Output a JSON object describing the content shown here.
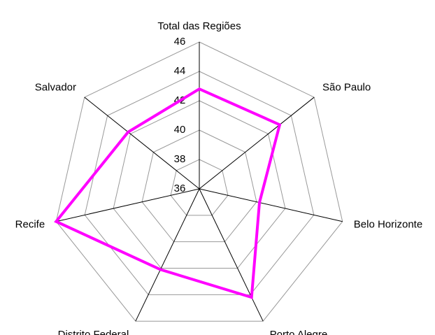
{
  "chart_data": {
    "type": "radar",
    "categories": [
      "Total das Regiões",
      "São Paulo",
      "Belo Horizonte",
      "Porto Alegre",
      "Distrito Federal",
      "Recife",
      "Salvador"
    ],
    "series": [
      {
        "color": "#ff00ff",
        "values": [
          42.8,
          43.0,
          40.2,
          44.2,
          42.1,
          46.0,
          42.2
        ]
      }
    ],
    "ylim": [
      36,
      46
    ],
    "yticks": [
      36,
      38,
      40,
      42,
      44,
      46
    ],
    "grid": true
  }
}
